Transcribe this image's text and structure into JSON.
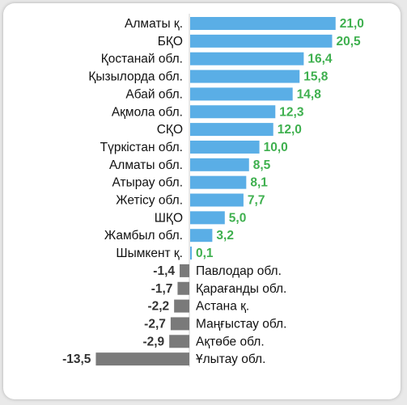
{
  "chart_data": {
    "type": "bar",
    "orientation": "horizontal",
    "categories": [
      "Алматы қ.",
      "БҚО",
      "Қостанай обл.",
      "Қызылорда обл.",
      "Абай обл.",
      "Ақмола обл.",
      "СҚО",
      "Түркістан обл.",
      "Алматы обл.",
      "Атырау обл.",
      "Жетісу обл.",
      "ШҚО",
      "Жамбыл обл.",
      "Шымкент қ.",
      "Павлодар обл.",
      "Қарағанды обл.",
      "Астана қ.",
      "Маңғыстау обл.",
      "Ақтөбе обл.",
      "Ұлытау обл."
    ],
    "values": [
      21.0,
      20.5,
      16.4,
      15.8,
      14.8,
      12.3,
      12.0,
      10.0,
      8.5,
      8.1,
      7.7,
      5.0,
      3.2,
      0.1,
      -1.4,
      -1.7,
      -2.2,
      -2.7,
      -2.9,
      -13.5
    ],
    "value_labels": [
      "21,0",
      "20,5",
      "16,4",
      "15,8",
      "14,8",
      "12,3",
      "12,0",
      "10,0",
      "8,5",
      "8,1",
      "7,7",
      "5,0",
      "3,2",
      "0,1",
      "-1,4",
      "-1,7",
      "-2,2",
      "-2,7",
      "-2,9",
      "-13,5"
    ],
    "xlim": [
      -13.5,
      21.0
    ],
    "grid": false,
    "legend": "none",
    "colors": {
      "positive_bar": "#5aaee6",
      "negative_bar": "#7a7a7a",
      "positive_label": "#3fb04f",
      "negative_label": "#333333",
      "axis": "#d0d0d0"
    }
  }
}
